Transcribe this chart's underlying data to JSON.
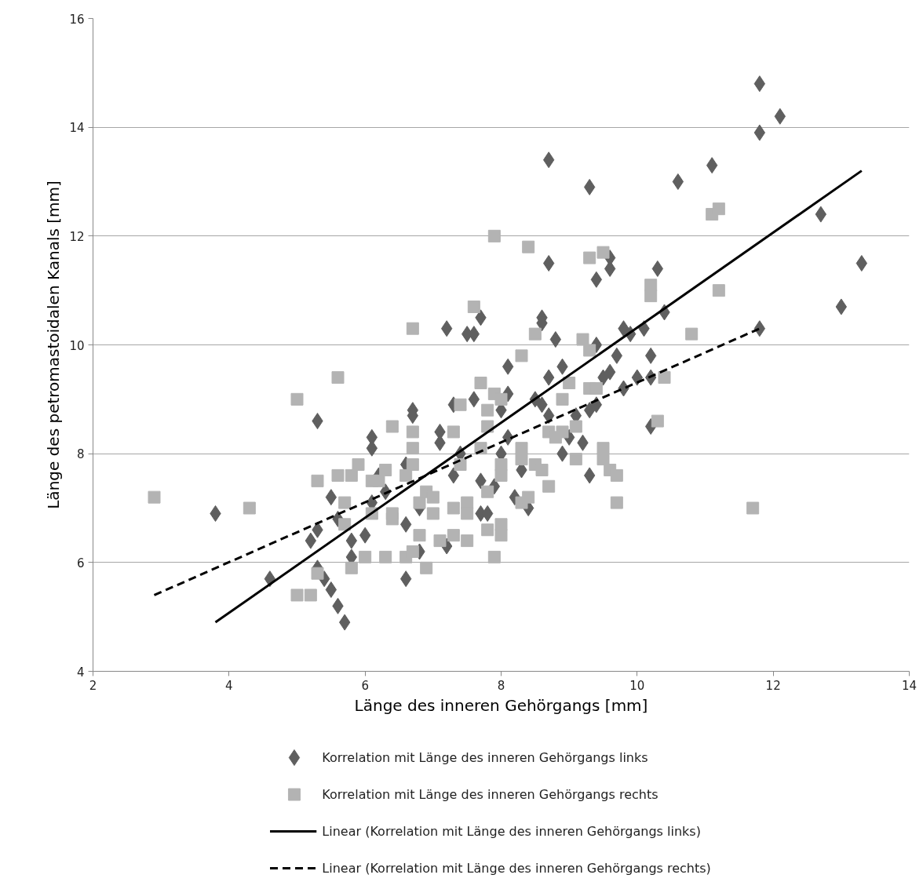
{
  "chart_data": {
    "type": "scatter",
    "xlabel": "Länge des inneren Gehörgangs [mm]",
    "ylabel": "Länge des petromastoidalen Kanals [mm]",
    "xlim": [
      2,
      14
    ],
    "ylim": [
      4,
      16
    ],
    "xticks": [
      2,
      4,
      6,
      8,
      10,
      12,
      14
    ],
    "yticks": [
      4,
      6,
      8,
      10,
      12,
      14,
      16
    ],
    "grid": "y",
    "legend": "bottom",
    "series": [
      {
        "name": "Korrelation mit Länge des inneren Gehörgangs links",
        "type": "scatter",
        "marker": "diamond",
        "color": "#5f5f5f",
        "x": [
          3.8,
          4.6,
          5.2,
          5.3,
          5.3,
          5.3,
          5.4,
          5.5,
          5.5,
          5.6,
          5.6,
          5.7,
          5.8,
          5.8,
          6.0,
          6.1,
          6.1,
          6.1,
          6.2,
          6.3,
          6.6,
          6.6,
          6.6,
          6.7,
          6.7,
          6.8,
          6.8,
          7.0,
          7.1,
          7.1,
          7.2,
          7.2,
          7.3,
          7.3,
          7.4,
          7.5,
          7.6,
          7.6,
          7.7,
          7.7,
          7.7,
          7.8,
          7.9,
          8.0,
          8.0,
          8.1,
          8.1,
          8.1,
          8.2,
          8.3,
          8.4,
          8.5,
          8.6,
          8.6,
          8.6,
          8.7,
          8.7,
          8.7,
          8.7,
          8.8,
          8.9,
          8.9,
          9.0,
          9.1,
          9.2,
          9.3,
          9.3,
          9.3,
          9.4,
          9.4,
          9.4,
          9.5,
          9.6,
          9.6,
          9.6,
          9.7,
          9.8,
          9.8,
          9.9,
          10.0,
          10.1,
          10.2,
          10.2,
          10.2,
          10.3,
          10.4,
          10.6,
          11.1,
          11.8,
          11.8,
          11.8,
          12.1,
          12.7,
          13.0,
          13.3
        ],
        "values": [
          6.9,
          5.7,
          6.4,
          6.6,
          8.6,
          5.9,
          5.7,
          5.5,
          7.2,
          5.2,
          6.8,
          4.9,
          6.4,
          6.1,
          6.5,
          7.1,
          8.3,
          8.1,
          7.6,
          7.3,
          5.7,
          6.7,
          7.8,
          8.8,
          8.7,
          6.2,
          7.0,
          null,
          8.4,
          8.2,
          10.3,
          6.3,
          7.6,
          8.9,
          8.0,
          10.2,
          9.0,
          10.2,
          10.5,
          7.5,
          6.9,
          6.9,
          7.4,
          8.0,
          8.8,
          9.1,
          9.6,
          8.3,
          7.2,
          7.7,
          7.0,
          9.0,
          10.5,
          10.4,
          8.9,
          13.4,
          11.5,
          9.4,
          8.7,
          10.1,
          9.6,
          8.0,
          8.3,
          8.7,
          8.2,
          12.9,
          7.6,
          8.8,
          11.2,
          10.0,
          8.9,
          9.4,
          11.6,
          11.4,
          9.5,
          9.8,
          10.3,
          9.2,
          10.2,
          9.4,
          10.3,
          9.8,
          9.4,
          8.5,
          11.4,
          10.6,
          13.0,
          13.3,
          14.8,
          13.9,
          10.3,
          14.2,
          12.4,
          10.7,
          11.5
        ]
      },
      {
        "name": "Korrelation mit Länge des inneren Gehörgangs rechts",
        "type": "scatter",
        "marker": "square",
        "color": "#b3b3b3",
        "x": [
          2.9,
          4.3,
          5.0,
          5.0,
          5.2,
          5.3,
          5.3,
          5.6,
          5.6,
          5.7,
          5.7,
          5.8,
          5.8,
          5.9,
          6.0,
          6.1,
          6.1,
          6.2,
          6.3,
          6.3,
          6.4,
          6.4,
          6.4,
          6.6,
          6.6,
          6.7,
          6.7,
          6.7,
          6.7,
          6.7,
          6.8,
          6.8,
          6.9,
          6.9,
          7.0,
          7.0,
          7.1,
          7.3,
          7.3,
          7.3,
          7.4,
          7.4,
          7.5,
          7.5,
          7.5,
          7.6,
          7.7,
          7.7,
          7.8,
          7.8,
          7.8,
          7.8,
          7.9,
          7.9,
          7.9,
          8.0,
          8.0,
          8.0,
          8.0,
          8.0,
          8.3,
          8.3,
          8.3,
          8.3,
          8.4,
          8.4,
          8.5,
          8.5,
          8.6,
          8.7,
          8.7,
          8.8,
          8.9,
          8.9,
          9.0,
          9.1,
          9.1,
          9.2,
          9.3,
          9.3,
          9.3,
          9.4,
          9.5,
          9.5,
          9.5,
          9.6,
          9.7,
          9.7,
          10.2,
          10.2,
          10.3,
          10.4,
          10.8,
          11.1,
          11.2,
          11.2,
          11.7
        ],
        "values": [
          7.2,
          7.0,
          9.0,
          5.4,
          5.4,
          7.5,
          5.8,
          9.4,
          7.6,
          7.1,
          6.7,
          7.6,
          5.9,
          7.8,
          6.1,
          7.5,
          6.9,
          7.5,
          7.7,
          6.1,
          8.5,
          6.9,
          6.8,
          7.6,
          6.1,
          10.3,
          8.4,
          8.1,
          7.8,
          6.2,
          7.1,
          6.5,
          7.3,
          5.9,
          6.9,
          7.2,
          6.4,
          8.4,
          7.0,
          6.5,
          8.9,
          7.8,
          7.1,
          6.9,
          6.4,
          10.7,
          9.3,
          8.1,
          8.8,
          8.5,
          7.3,
          6.6,
          12.0,
          9.1,
          6.1,
          9.0,
          7.8,
          7.6,
          6.7,
          6.5,
          9.8,
          8.1,
          7.9,
          7.1,
          11.8,
          7.2,
          10.2,
          7.8,
          7.7,
          8.4,
          7.4,
          8.3,
          9.0,
          8.4,
          9.3,
          8.5,
          7.9,
          10.1,
          11.6,
          9.9,
          9.2,
          9.2,
          11.7,
          8.1,
          7.9,
          7.7,
          7.6,
          7.1,
          11.1,
          10.9,
          8.6,
          9.4,
          10.2,
          12.4,
          12.5,
          11.0,
          7.0
        ]
      },
      {
        "name": "Linear (Korrelation mit Länge des inneren Gehörgangs links)",
        "type": "line",
        "line_style": "solid",
        "color": "#000000",
        "x": [
          3.8,
          13.3
        ],
        "values": [
          4.9,
          13.2
        ]
      },
      {
        "name": "Linear (Korrelation mit Länge des inneren Gehörgangs rechts)",
        "type": "line",
        "line_style": "dashed",
        "color": "#000000",
        "x": [
          2.9,
          11.8
        ],
        "values": [
          5.4,
          10.3
        ]
      }
    ]
  }
}
